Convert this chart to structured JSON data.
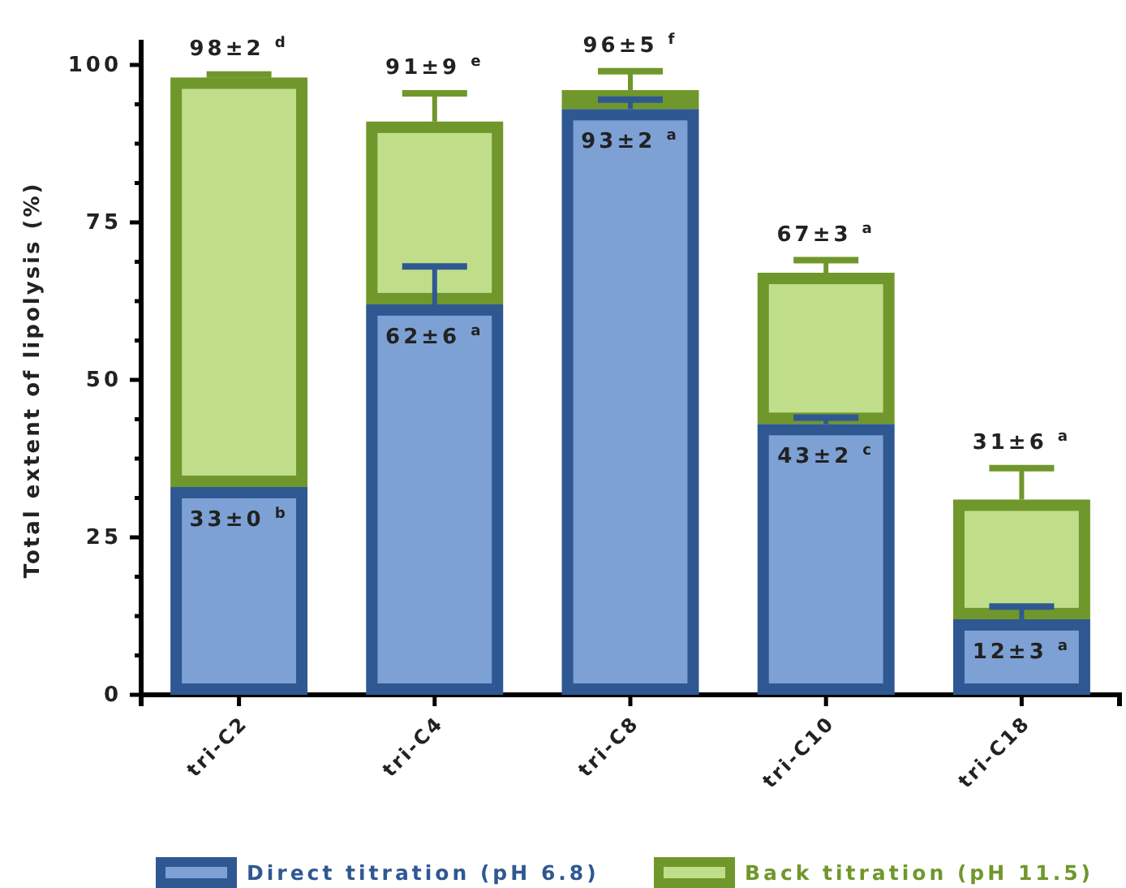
{
  "chart_data": {
    "type": "bar",
    "stacked": true,
    "ylabel": "Total extent of lipolysis (%)",
    "categories": [
      "tri-C2",
      "tri-C4",
      "tri-C8",
      "tri-C10",
      "tri-C18"
    ],
    "series": [
      {
        "name": "Direct titration (pH 6.8)",
        "color": "#7da1d5",
        "values": [
          33,
          62,
          93,
          43,
          12
        ],
        "errors": [
          null,
          [
            62,
            68
          ],
          [
            93,
            94.5
          ],
          [
            43,
            44
          ],
          [
            12,
            14
          ]
        ],
        "value_labels": [
          "33±0 $^{b}$",
          "62±6 $^{a}$",
          "93±2 $^{a}$",
          "43±2 $^{c}$",
          "12±3 $^{a}$"
        ]
      },
      {
        "name": "Back titration (pH 11.5)",
        "color": "#c0de8a",
        "values": [
          65,
          29,
          3,
          24,
          19
        ],
        "errors": [
          [
            98,
            98.5
          ],
          [
            91,
            95.5
          ],
          [
            96,
            99
          ],
          [
            67,
            69
          ],
          [
            31,
            36
          ]
        ]
      }
    ],
    "totals": [
      "98±2 $^{d}$",
      "91±9 $^{e}$",
      "96±5 $^{f}$",
      "67±3 $^{a}$",
      "31±6 $^{a}$"
    ],
    "ylim": [
      0,
      104
    ],
    "yticks": [
      0,
      {
        "value": 6.25,
        "label": null
      },
      {
        "value": 12.5,
        "label": null
      },
      {
        "value": 18.75,
        "label": null
      },
      25,
      {
        "value": 31.25,
        "label": null
      },
      {
        "value": 37.5,
        "label": null
      },
      {
        "value": 43.75,
        "label": null
      },
      50,
      {
        "value": 56.25,
        "label": null
      },
      {
        "value": 62.5,
        "label": null
      },
      {
        "value": 68.75,
        "label": null
      },
      75,
      {
        "value": 81.25,
        "label": null
      },
      {
        "value": 87.5,
        "label": null
      },
      {
        "value": 93.75,
        "label": null
      },
      100
    ],
    "legend": "bottom",
    "grid": false
  }
}
